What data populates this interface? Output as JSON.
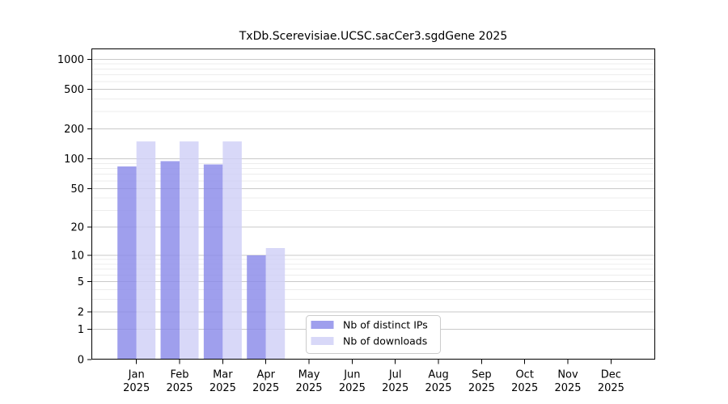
{
  "chart_data": {
    "type": "bar",
    "title": "TxDb.Scerevisiae.UCSC.sacCer3.sgdGene 2025",
    "categories": [
      "Jan",
      "Feb",
      "Mar",
      "Apr",
      "May",
      "Jun",
      "Jul",
      "Aug",
      "Sep",
      "Oct",
      "Nov",
      "Dec"
    ],
    "x_tick_year_line": "2025",
    "series": [
      {
        "name": "Nb of distinct IPs",
        "color": "#8a8ae9",
        "values": [
          84,
          95,
          88,
          10,
          0,
          0,
          0,
          0,
          0,
          0,
          0,
          0
        ]
      },
      {
        "name": "Nb of downloads",
        "color": "#d0d0f6",
        "values": [
          150,
          150,
          150,
          12,
          0,
          0,
          0,
          0,
          0,
          0,
          0,
          0
        ]
      }
    ],
    "yscale": "log1p",
    "yticks": [
      0,
      1,
      2,
      5,
      10,
      20,
      50,
      100,
      200,
      500,
      1000
    ],
    "minor_grid_values": [
      3,
      4,
      6,
      7,
      8,
      9,
      30,
      40,
      60,
      70,
      80,
      90,
      300,
      400,
      600,
      700,
      800,
      900
    ],
    "ylim": [
      0,
      1280
    ],
    "grid": "horizontal major+minor",
    "legend_position": "lower center",
    "colors": {
      "grid_major": "#c9c9c9",
      "grid_minor": "#ececec",
      "axis": "#000000",
      "background": "#ffffff",
      "legend_border": "#cccccc"
    }
  }
}
